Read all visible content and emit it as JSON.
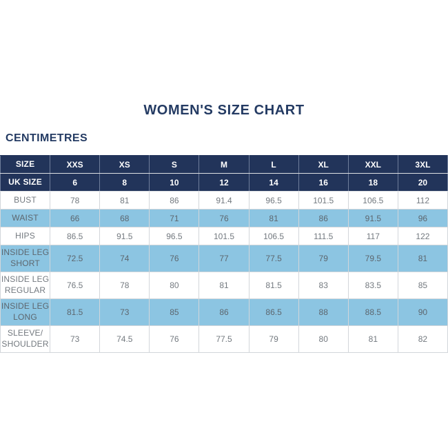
{
  "page": {
    "title": "WOMEN'S SIZE CHART",
    "unit_label": "CENTIMETRES"
  },
  "colors": {
    "navy_header": "#22345a",
    "title_navy": "#243b63",
    "light_blue_row": "#8cc5e2",
    "white_row": "#ffffff",
    "border": "#d2d6da"
  },
  "chart_data": {
    "type": "table",
    "title": "WOMEN'S SIZE CHART",
    "unit_label": "CENTIMETRES",
    "columns": [
      "SIZE",
      "XXS",
      "XS",
      "S",
      "M",
      "L",
      "XL",
      "XXL",
      "3XL"
    ],
    "uk_size": {
      "label": "UK SIZE",
      "values": [
        "6",
        "8",
        "10",
        "12",
        "14",
        "16",
        "18",
        "20"
      ]
    },
    "rows": [
      {
        "label": "BUST",
        "values": [
          "78",
          "81",
          "86",
          "91.4",
          "96.5",
          "101.5",
          "106.5",
          "112"
        ]
      },
      {
        "label": "WAIST",
        "values": [
          "66",
          "68",
          "71",
          "76",
          "81",
          "86",
          "91.5",
          "96"
        ]
      },
      {
        "label": "HIPS",
        "values": [
          "86.5",
          "91.5",
          "96.5",
          "101.5",
          "106.5",
          "111.5",
          "117",
          "122"
        ]
      },
      {
        "label": "INSIDE LEG\nSHORT",
        "values": [
          "72.5",
          "74",
          "76",
          "77",
          "77.5",
          "79",
          "79.5",
          "81"
        ]
      },
      {
        "label": "INSIDE LEG\nREGULAR",
        "values": [
          "76.5",
          "78",
          "80",
          "81",
          "81.5",
          "83",
          "83.5",
          "85"
        ]
      },
      {
        "label": "INSIDE LEG\nLONG",
        "values": [
          "81.5",
          "73",
          "85",
          "86",
          "86.5",
          "88",
          "88.5",
          "90"
        ]
      },
      {
        "label": "SLEEVE/\nSHOULDER",
        "values": [
          "73",
          "74.5",
          "76",
          "77.5",
          "79",
          "80",
          "81",
          "82"
        ]
      }
    ]
  }
}
